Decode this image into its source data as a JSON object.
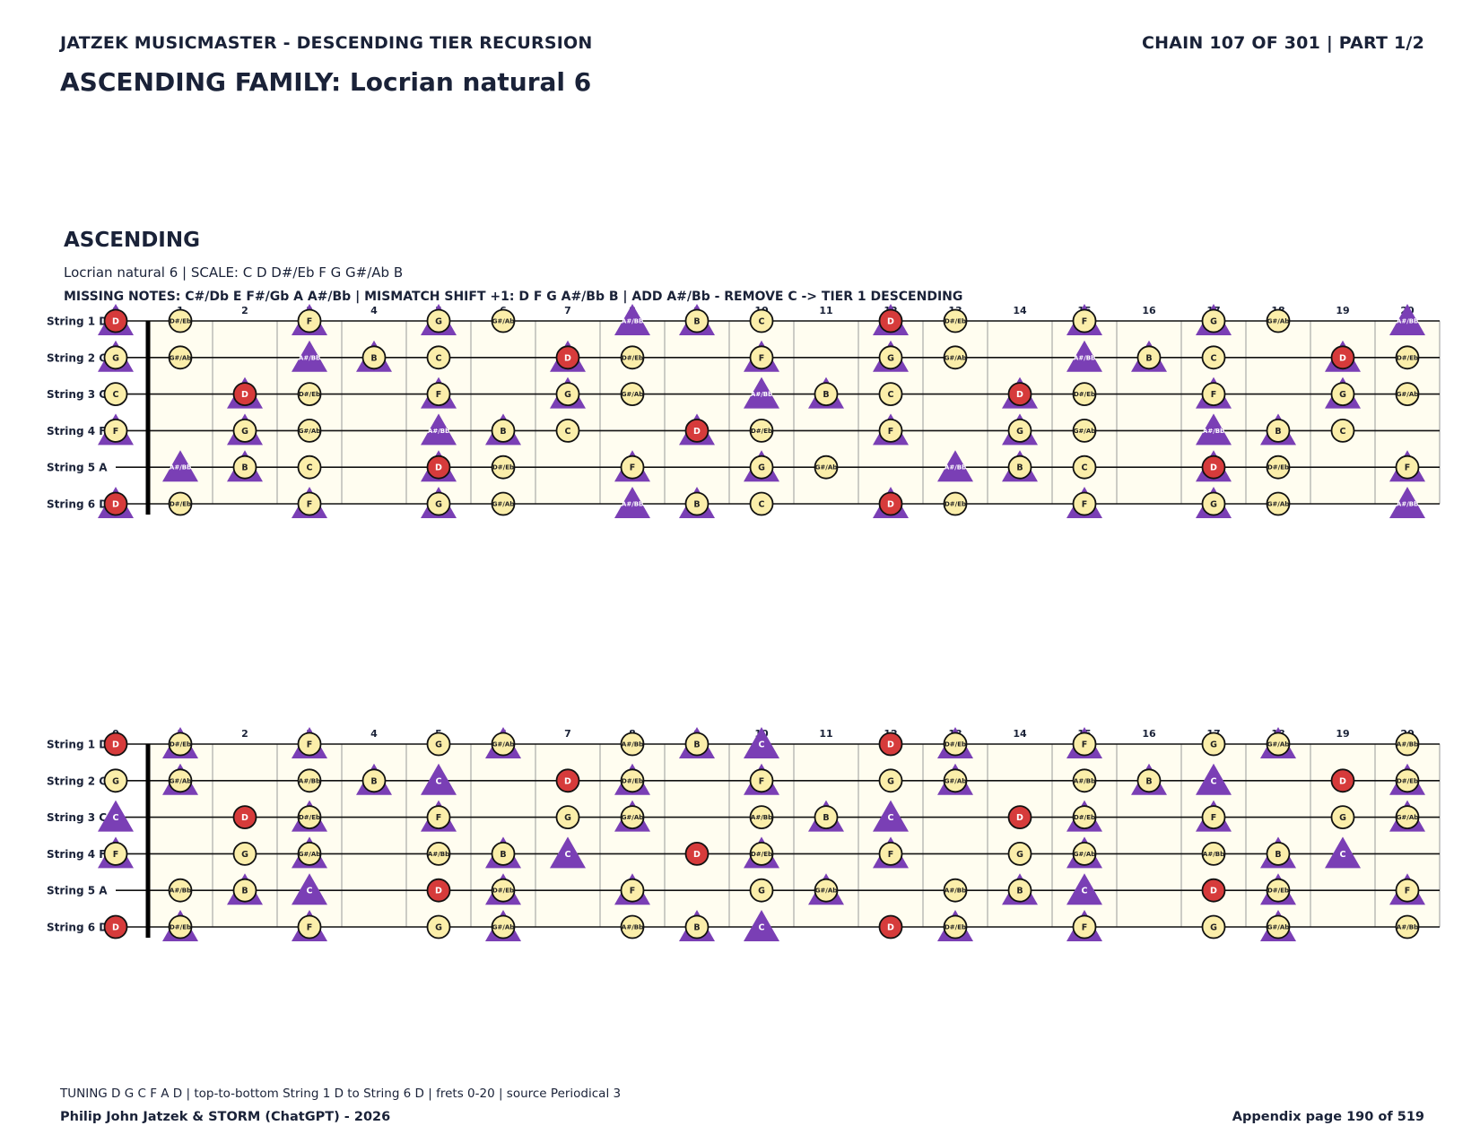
{
  "header": {
    "series_title": "JATZEK MUSICMASTER - DESCENDING TIER RECURSION",
    "chain_info": "CHAIN 107 OF 301  |  PART 1/2",
    "family_title": "ASCENDING FAMILY: Locrian natural 6"
  },
  "section": {
    "title": "ASCENDING",
    "scale_line": "Locrian natural 6  |  SCALE: C D D#/Eb F G G#/Ab B",
    "missing_line": "MISSING NOTES: C#/Db E F#/Gb A A#/Bb  |  MISMATCH SHIFT +1: D F G A#/Bb B  |  ADD A#/Bb - REMOVE C -> TIER 1 DESCENDING"
  },
  "strings": [
    {
      "label": "String 1 D",
      "open": "D"
    },
    {
      "label": "String 2 G",
      "open": "G"
    },
    {
      "label": "String 3 C",
      "open": "C"
    },
    {
      "label": "String 4 F",
      "open": "F"
    },
    {
      "label": "String 5 A",
      "open": "A"
    },
    {
      "label": "String 6 D",
      "open": "D"
    }
  ],
  "fret_numbers": [
    "0",
    "1",
    "2",
    "3",
    "4",
    "5",
    "6",
    "7",
    "8",
    "9",
    "10",
    "11",
    "12",
    "13",
    "14",
    "15",
    "16",
    "17",
    "18",
    "19",
    "20"
  ],
  "chromatic": [
    "C",
    "C#/Db",
    "D",
    "D#/Eb",
    "E",
    "F",
    "F#/Gb",
    "G",
    "G#/Ab",
    "A",
    "A#/Bb",
    "B"
  ],
  "diagrams": [
    {
      "circle_notes": [
        "C",
        "D",
        "D#/Eb",
        "F",
        "G",
        "G#/Ab",
        "B"
      ],
      "triangle_notes": [
        "D",
        "F",
        "G",
        "A#/Bb",
        "B"
      ],
      "root": "D"
    },
    {
      "circle_notes": [
        "D",
        "D#/Eb",
        "F",
        "G",
        "G#/Ab",
        "A#/Bb",
        "B"
      ],
      "triangle_notes": [
        "C",
        "D#/Eb",
        "F",
        "G#/Ab",
        "B"
      ],
      "root": "D"
    }
  ],
  "colors": {
    "fretboard_bg": "#fffdf0",
    "note_fill": "#fbeeaa",
    "root_fill": "#d63b3b",
    "triangle_fill": "#7a3fb5",
    "ink": "#1a2238"
  },
  "footer": {
    "tuning_line": "TUNING D G C F A D | top-to-bottom String 1 D to String 6 D | frets 0-20 | source Periodical 3",
    "author": "Philip John Jatzek & STORM (ChatGPT) - 2026",
    "page": "Appendix page 190 of 519"
  }
}
